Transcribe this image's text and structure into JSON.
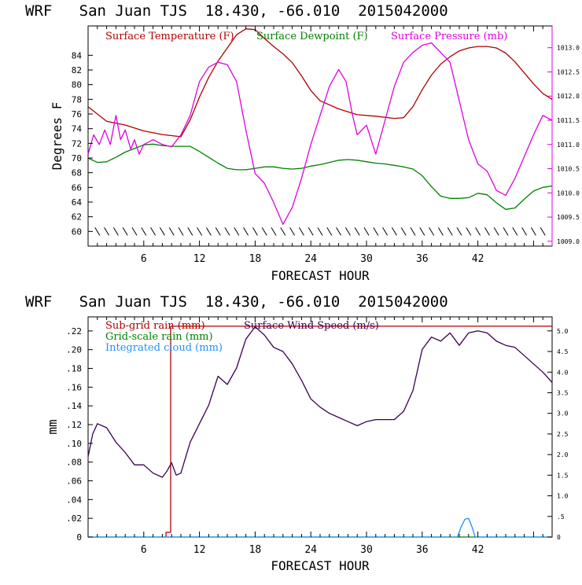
{
  "chart_data": [
    {
      "type": "line",
      "title": "WRF   San Juan TJS  18.430, -66.010  2015042000",
      "xlabel": "FORECAST HOUR",
      "ylabel": "Degrees F",
      "xlim": [
        0,
        50
      ],
      "ylim": [
        58,
        88
      ],
      "y2lim": [
        1008.9,
        1013.45
      ],
      "x_ticks": [
        6,
        12,
        18,
        24,
        30,
        36,
        42
      ],
      "y_ticks": [
        60,
        62,
        64,
        66,
        68,
        70,
        72,
        74,
        76,
        78,
        80,
        82,
        84
      ],
      "y2_ticks": [
        1009.0,
        1009.5,
        1010.0,
        1010.5,
        1011.0,
        1011.5,
        1012.0,
        1012.5,
        1013.0
      ],
      "y2_tick_labels": [
        "1009.0",
        "1009.5",
        "1010.0",
        "1010.5",
        "1011.0",
        "1011.5",
        "1012.0",
        "1012.5",
        "1013.0"
      ],
      "wind_barbs_y": 60,
      "legend_placement": "top-left inside",
      "series": [
        {
          "name": "Surface Temperature (F)",
          "color": "#b00000",
          "axis": "left",
          "x": [
            0,
            2,
            4,
            6,
            8,
            10,
            11,
            12,
            13,
            14,
            15,
            16,
            17,
            18,
            19,
            20,
            21,
            22,
            23,
            24,
            25,
            27,
            29,
            31,
            33,
            34,
            35,
            36,
            37,
            38,
            39,
            40,
            41,
            42,
            43,
            44,
            45,
            46,
            47,
            48,
            49,
            50
          ],
          "y": [
            77,
            75,
            74.5,
            73.7,
            73.2,
            72.9,
            75.2,
            78.3,
            81,
            83.2,
            85,
            86.8,
            87.6,
            87.5,
            86.3,
            85.2,
            84.2,
            83,
            81.2,
            79.2,
            77.8,
            76.7,
            75.9,
            75.7,
            75.4,
            75.5,
            77,
            79.3,
            81.3,
            82.8,
            83.8,
            84.6,
            85,
            85.2,
            85.2,
            85,
            84.3,
            83.1,
            81.6,
            80.1,
            78.8,
            78
          ]
        },
        {
          "name": "Surface Dewpoint (F)",
          "color": "#008000",
          "axis": "left",
          "x": [
            0,
            1,
            2,
            3,
            4,
            5,
            6,
            7,
            8,
            9,
            10,
            11,
            12,
            13,
            14,
            15,
            16,
            17,
            18,
            19,
            20,
            21,
            22,
            23,
            24,
            25,
            26,
            27,
            28,
            29,
            30,
            31,
            32,
            33,
            34,
            35,
            36,
            37,
            38,
            39,
            40,
            41,
            42,
            43,
            44,
            45,
            46,
            47,
            48,
            49,
            50
          ],
          "y": [
            70,
            69.4,
            69.5,
            70.1,
            70.8,
            71.3,
            71.8,
            71.9,
            71.7,
            71.6,
            71.6,
            71.6,
            70.9,
            70.1,
            69.3,
            68.6,
            68.4,
            68.4,
            68.6,
            68.8,
            68.8,
            68.6,
            68.5,
            68.6,
            68.9,
            69.1,
            69.4,
            69.7,
            69.8,
            69.7,
            69.5,
            69.3,
            69.2,
            69,
            68.8,
            68.5,
            67.6,
            66.1,
            64.8,
            64.5,
            64.5,
            64.6,
            65.2,
            65,
            63.9,
            63,
            63.2,
            64.4,
            65.5,
            66,
            66.2
          ]
        },
        {
          "name": "Surface Pressure (mb)",
          "color": "#e000e0",
          "axis": "right",
          "x": [
            0,
            0.6,
            1.2,
            1.8,
            2.4,
            3,
            3.5,
            4,
            4.6,
            5,
            5.5,
            6,
            7,
            8,
            9,
            10,
            11,
            12,
            13,
            14,
            15,
            16,
            17,
            18,
            19,
            20,
            21,
            22,
            23,
            24,
            25,
            26,
            27,
            27.8,
            28.5,
            29,
            30,
            31,
            32,
            33,
            34,
            35,
            36,
            37,
            38,
            39,
            40,
            41,
            42,
            43,
            44,
            45,
            46,
            47,
            48,
            49,
            50
          ],
          "y": [
            1010.8,
            1011.2,
            1011.0,
            1011.3,
            1011.0,
            1011.6,
            1011.1,
            1011.3,
            1010.9,
            1011.1,
            1010.8,
            1011.0,
            1011.1,
            1011.0,
            1010.95,
            1011.2,
            1011.6,
            1012.3,
            1012.6,
            1012.7,
            1012.65,
            1012.3,
            1011.3,
            1010.4,
            1010.2,
            1009.8,
            1009.35,
            1009.7,
            1010.3,
            1011.0,
            1011.6,
            1012.2,
            1012.55,
            1012.3,
            1011.6,
            1011.2,
            1011.4,
            1010.8,
            1011.5,
            1012.2,
            1012.7,
            1012.9,
            1013.05,
            1013.1,
            1012.9,
            1012.7,
            1011.9,
            1011.1,
            1010.6,
            1010.45,
            1010.05,
            1009.95,
            1010.3,
            1010.75,
            1011.2,
            1011.6,
            1011.5
          ]
        }
      ]
    },
    {
      "type": "line",
      "title": "WRF   San Juan TJS  18.430, -66.010  2015042000",
      "xlabel": "FORECAST HOUR",
      "ylabel": "mm",
      "xlim": [
        0,
        50
      ],
      "ylim": [
        0,
        0.235
      ],
      "y2lim": [
        0,
        5.34
      ],
      "x_ticks": [
        6,
        12,
        18,
        24,
        30,
        36,
        42
      ],
      "y_ticks": [
        0,
        0.02,
        0.04,
        0.06,
        0.08,
        0.1,
        0.12,
        0.14,
        0.16,
        0.18,
        0.2,
        0.22
      ],
      "y_tick_labels": [
        "0",
        ".02",
        ".04",
        ".06",
        ".08",
        ".10",
        ".12",
        ".14",
        ".16",
        ".18",
        ".20",
        ".22"
      ],
      "y2_ticks": [
        0,
        0.5,
        1.0,
        1.5,
        2.0,
        2.5,
        3.0,
        3.5,
        4.0,
        4.5,
        5.0
      ],
      "y2_tick_labels": [
        "0",
        ".5",
        "1.0",
        "1.5",
        "2.0",
        "2.5",
        "3.0",
        "3.5",
        "4.0",
        "4.5",
        "5.0"
      ],
      "legend_placement": "top-left inside",
      "series": [
        {
          "name": "Sub-grid rain (mm)",
          "color": "#b00000",
          "axis": "left",
          "x": [
            8.4,
            8.4,
            8.9,
            8.9,
            50
          ],
          "y": [
            0,
            0.005,
            0.005,
            0.225,
            0.225
          ]
        },
        {
          "name": "Grid-scale rain (mm)",
          "color": "#008000",
          "axis": "left",
          "x": [
            0,
            50
          ],
          "y": [
            0,
            0
          ]
        },
        {
          "name": "Integrated cloud (mm)",
          "color": "#1e90ff",
          "axis": "left",
          "x": [
            0,
            39.8,
            40.2,
            40.6,
            41.0,
            41.4,
            41.7,
            50
          ],
          "y": [
            0,
            0,
            0.011,
            0.019,
            0.02,
            0.01,
            0,
            0
          ]
        },
        {
          "name": "Surface Wind Speed (m/s)",
          "color": "#3a0050",
          "axis": "right",
          "x": [
            0,
            0.5,
            1,
            2,
            3,
            4,
            5,
            6,
            7,
            8,
            8.5,
            9,
            9.5,
            10,
            11,
            12,
            13,
            14,
            15,
            16,
            17,
            18,
            19,
            20,
            21,
            22,
            23,
            24,
            25,
            26,
            27,
            28,
            29,
            30,
            31,
            32,
            33,
            34,
            35,
            36,
            37,
            38,
            39,
            40,
            41,
            42,
            43,
            44,
            45,
            46,
            47,
            48,
            49,
            50
          ],
          "y": [
            1.95,
            2.5,
            2.75,
            2.65,
            2.3,
            2.05,
            1.75,
            1.75,
            1.55,
            1.45,
            1.6,
            1.8,
            1.5,
            1.55,
            2.3,
            2.75,
            3.2,
            3.9,
            3.7,
            4.1,
            4.8,
            5.1,
            4.9,
            4.6,
            4.5,
            4.2,
            3.8,
            3.35,
            3.15,
            3.0,
            2.9,
            2.8,
            2.7,
            2.8,
            2.85,
            2.85,
            2.85,
            3.05,
            3.55,
            4.55,
            4.85,
            4.75,
            4.95,
            4.65,
            4.95,
            5.0,
            4.95,
            4.75,
            4.65,
            4.6,
            4.4,
            4.2,
            4.0,
            3.75
          ]
        }
      ]
    }
  ]
}
